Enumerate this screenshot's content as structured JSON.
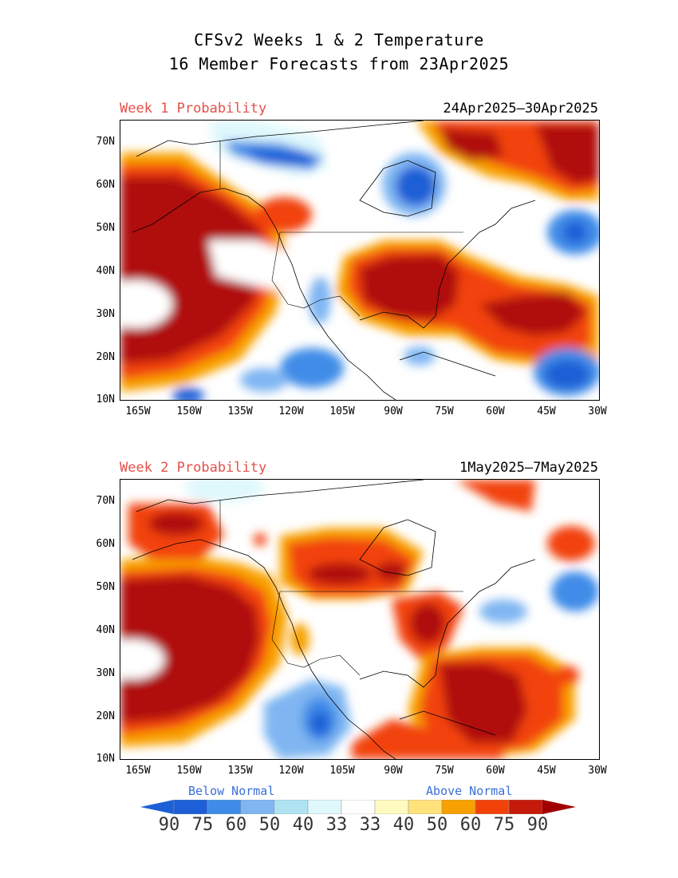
{
  "title": {
    "line1": "CFSv2 Weeks 1 & 2 Temperature",
    "line2": "16 Member Forecasts from 23Apr2025"
  },
  "panels": [
    {
      "label": "Week 1 Probability",
      "dates": "24Apr2025—30Apr2025"
    },
    {
      "label": "Week 2 Probability",
      "dates": "1May2025—7May2025"
    }
  ],
  "axes": {
    "lat_ticks": [
      "70N",
      "60N",
      "50N",
      "40N",
      "30N",
      "20N",
      "10N"
    ],
    "lon_ticks": [
      "165W",
      "150W",
      "135W",
      "120W",
      "105W",
      "90W",
      "75W",
      "60W",
      "45W",
      "30W"
    ],
    "lat_range": [
      10,
      75
    ],
    "lon_range": [
      -170,
      -30
    ]
  },
  "legend": {
    "below_label": "Below Normal",
    "above_label": "Above Normal",
    "below_values": [
      "90",
      "75",
      "60",
      "50",
      "40",
      "33"
    ],
    "above_values": [
      "33",
      "40",
      "50",
      "60",
      "75",
      "90"
    ],
    "below_colors": [
      "#1c5fd6",
      "#3f8ce8",
      "#7fb6f2",
      "#b0e3f2",
      "#dff8fc"
    ],
    "above_colors": [
      "#fffbc0",
      "#ffe27a",
      "#f8a000",
      "#f2420a",
      "#c41a0a"
    ],
    "end_below": "#1c5fd6",
    "end_above": "#a00000"
  },
  "colors": {
    "title_red": "#e5504a",
    "normal_blue": "#3a6fd8",
    "dark_red": "#a50000"
  }
}
